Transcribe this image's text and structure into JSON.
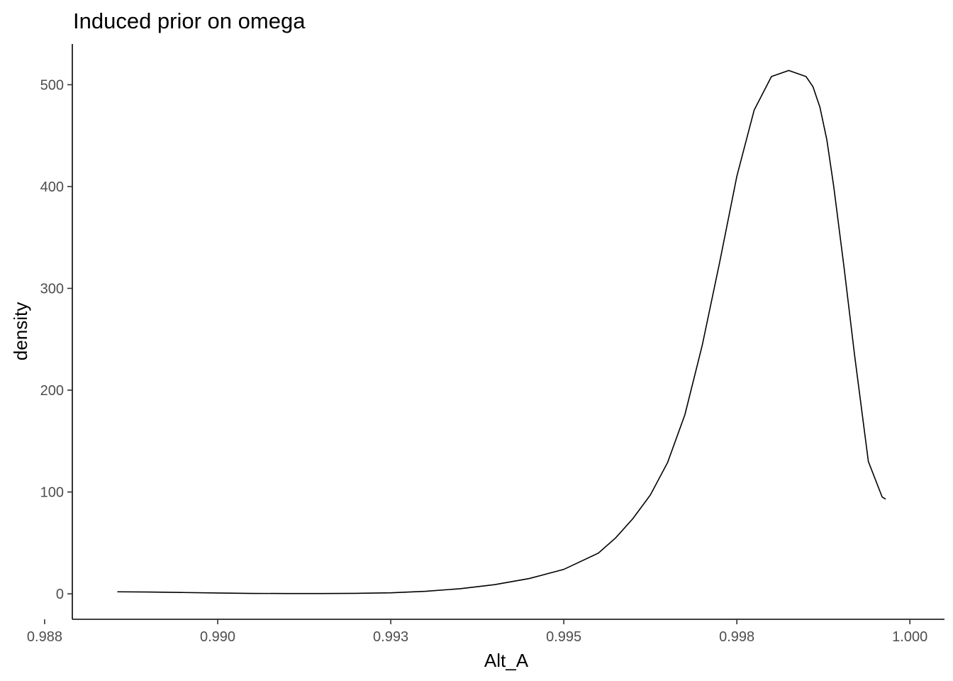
{
  "chart_data": {
    "type": "line",
    "title": "Induced prior on omega",
    "xlabel": "Alt_A",
    "ylabel": "density",
    "xlim": [
      0.9879,
      1.0005
    ],
    "ylim": [
      -25,
      540
    ],
    "x_ticks": [
      0.9875,
      0.99,
      0.9925,
      0.995,
      0.9975,
      1.0
    ],
    "x_tick_labels": [
      "0.988",
      "0.990",
      "0.993",
      "0.995",
      "0.998",
      "1.000"
    ],
    "y_ticks": [
      0,
      100,
      200,
      300,
      400,
      500
    ],
    "y_tick_labels": [
      "0",
      "100",
      "200",
      "300",
      "400",
      "500"
    ],
    "grid": false,
    "line_color": "#000000",
    "series": [
      {
        "x": [
          0.98855,
          0.989,
          0.9895,
          0.99,
          0.9905,
          0.991,
          0.9915,
          0.992,
          0.9925,
          0.993,
          0.9935,
          0.994,
          0.9945,
          0.995,
          0.9955,
          0.99575,
          0.996,
          0.99625,
          0.9965,
          0.99675,
          0.997,
          0.99725,
          0.9975,
          0.99775,
          0.998,
          0.99825,
          0.9985,
          0.9986,
          0.9987,
          0.9988,
          0.9989,
          0.99905,
          0.9992,
          0.9994,
          0.9996,
          0.99965
        ],
        "y": [
          2,
          1.8,
          1.3,
          0.8,
          0.4,
          0.3,
          0.3,
          0.5,
          1,
          2.5,
          5,
          9,
          15,
          24,
          40,
          55,
          74,
          97,
          129,
          176,
          244,
          325,
          410,
          475,
          508,
          514,
          508,
          498,
          478,
          446,
          400,
          320,
          235,
          130,
          95,
          93
        ]
      }
    ]
  }
}
